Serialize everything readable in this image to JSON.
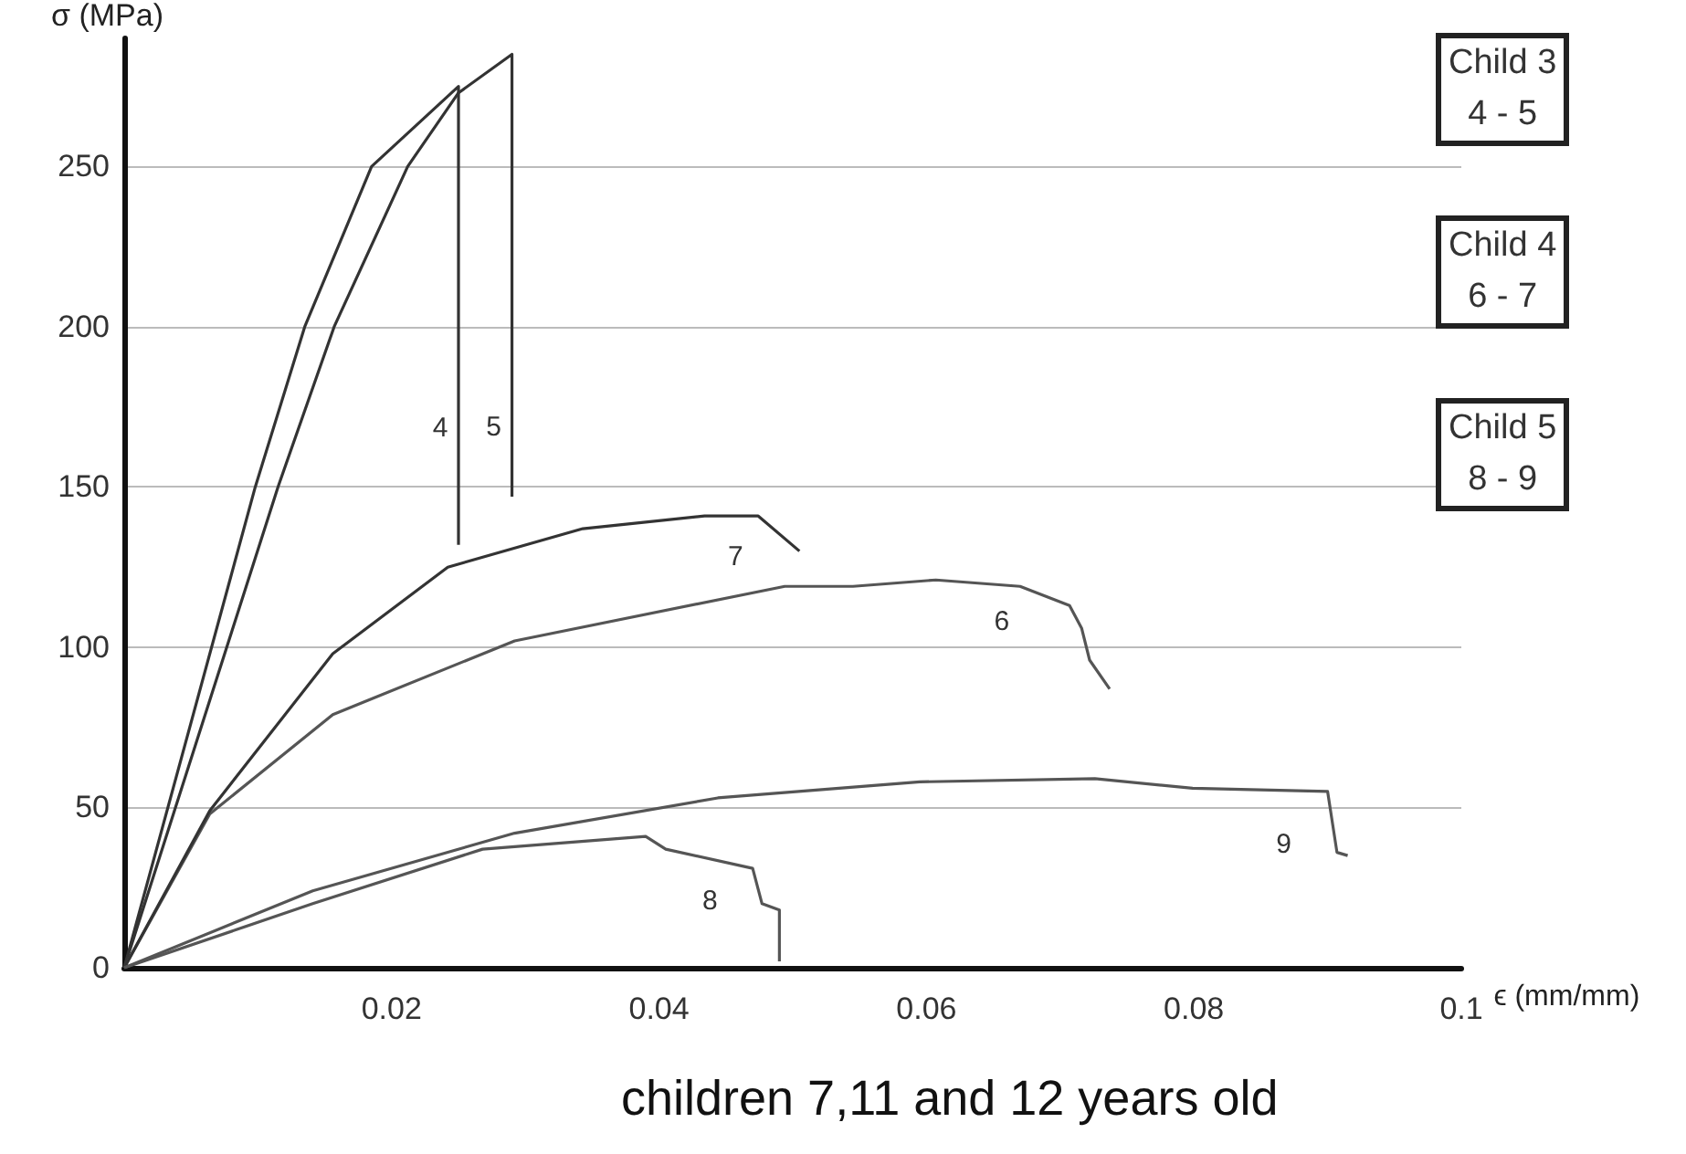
{
  "chart_data": {
    "type": "line",
    "title": "children 7,11 and 12 years old",
    "xlabel": "ϵ (mm/mm)",
    "ylabel": "σ (MPa)",
    "xlim": [
      0,
      0.1
    ],
    "xticks": [
      0.02,
      0.04,
      0.06,
      0.08,
      0.1
    ],
    "ylim": [
      0,
      290
    ],
    "yticks": [
      0,
      50,
      100,
      150,
      200,
      250
    ],
    "grid": "y",
    "marker": "none",
    "line_style": "solid",
    "series": [
      {
        "name": "4",
        "color": "#333333",
        "x": [
          0,
          0.0098,
          0.0135,
          0.0185,
          0.025,
          0.025
        ],
        "values": [
          0,
          150,
          200,
          250,
          275,
          132
        ]
      },
      {
        "name": "5",
        "color": "#333333",
        "x": [
          0,
          0.0115,
          0.0157,
          0.0212,
          0.025,
          0.029,
          0.029
        ],
        "values": [
          0,
          150,
          200,
          250,
          273,
          285,
          147
        ]
      },
      {
        "name": "6",
        "color": "#555555",
        "x": [
          0,
          0.0064,
          0.0156,
          0.0292,
          0.0494,
          0.0545,
          0.0607,
          0.067,
          0.0707,
          0.0716,
          0.0722,
          0.0737
        ],
        "values": [
          0,
          48,
          79,
          102,
          119,
          119,
          121,
          119,
          113,
          106,
          96,
          87
        ]
      },
      {
        "name": "7",
        "color": "#333333",
        "x": [
          0,
          0.0064,
          0.0156,
          0.0242,
          0.0343,
          0.0434,
          0.0474,
          0.0505
        ],
        "values": [
          0,
          49,
          98,
          125,
          137,
          141,
          141,
          130
        ]
      },
      {
        "name": "8",
        "color": "#555555",
        "x": [
          0,
          0.0141,
          0.0268,
          0.039,
          0.0405,
          0.047,
          0.0477,
          0.049,
          0.049
        ],
        "values": [
          0,
          20,
          37,
          41,
          37,
          31,
          20,
          18,
          2
        ]
      },
      {
        "name": "9",
        "color": "#555555",
        "x": [
          0,
          0.0141,
          0.0292,
          0.0444,
          0.0595,
          0.0726,
          0.0799,
          0.09,
          0.0907,
          0.0915
        ],
        "values": [
          0,
          24,
          42,
          53,
          58,
          59,
          56,
          55,
          36,
          35
        ]
      }
    ],
    "annotations": [
      "Child 3\n4 - 5",
      "Child 4\n6 - 7",
      "Child 5\n8 - 9"
    ]
  }
}
